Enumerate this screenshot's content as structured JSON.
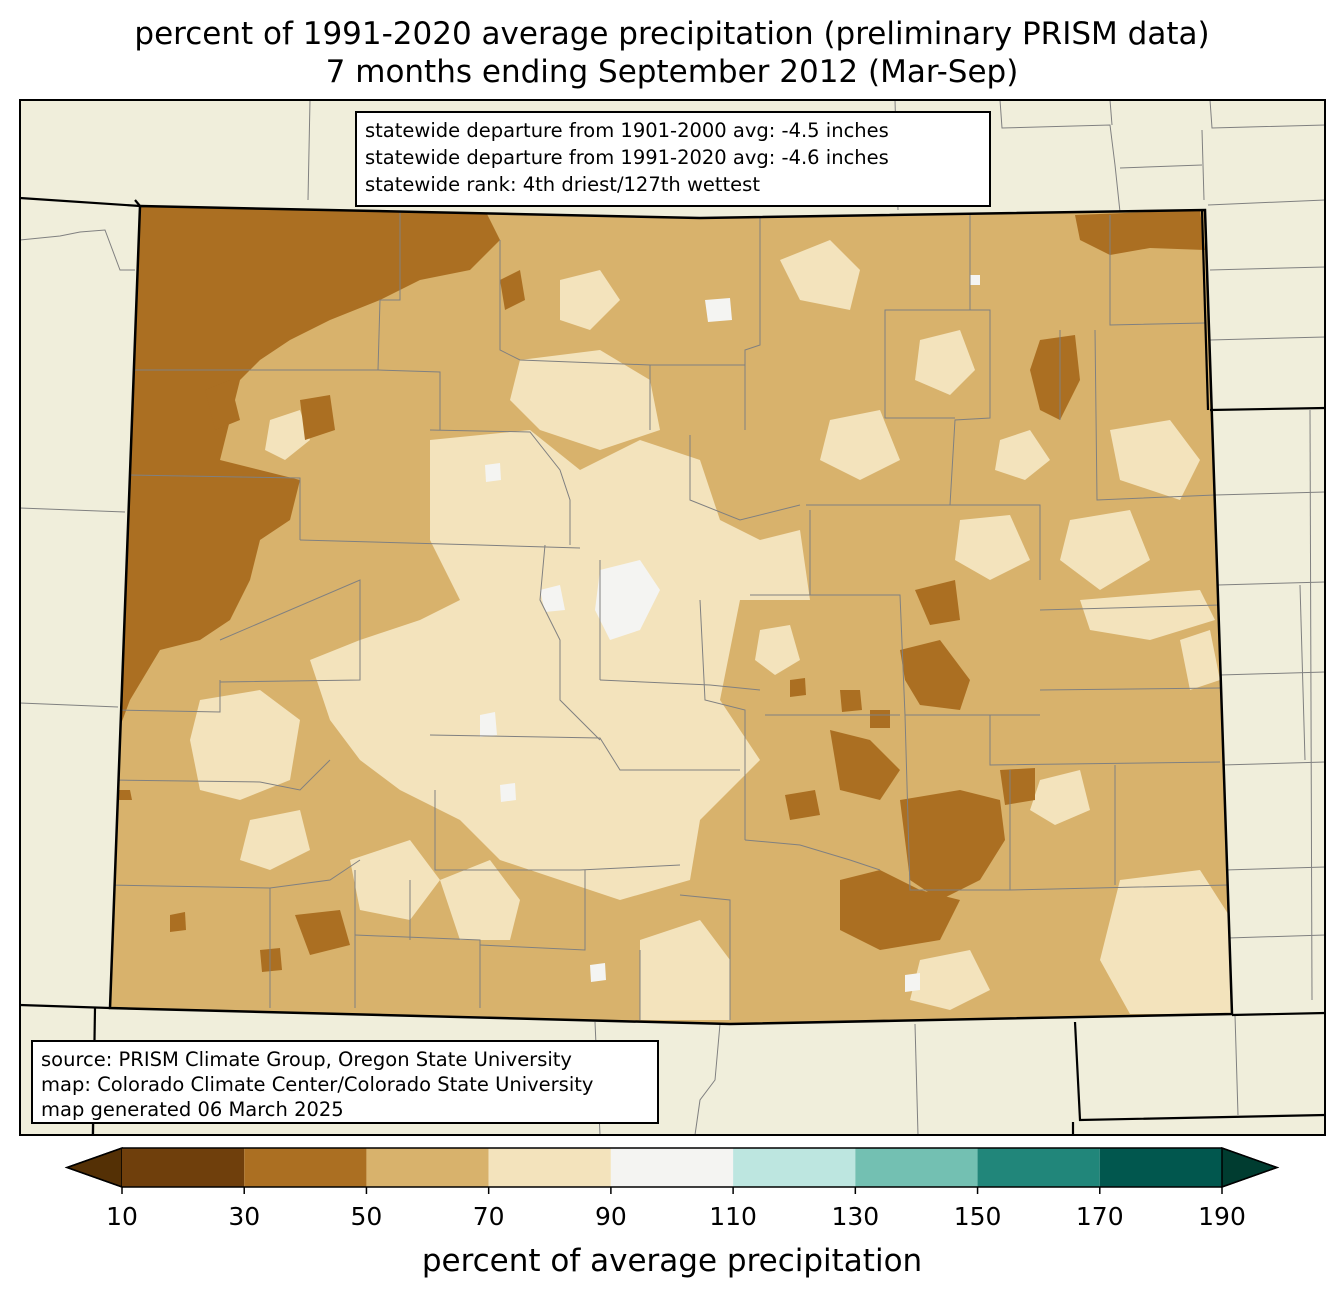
{
  "title": {
    "line1": "percent of 1991-2020 average precipitation (preliminary PRISM data)",
    "line2": "7 months ending September 2012 (Mar-Sep)"
  },
  "stats": {
    "line1": "statewide departure from 1901-2000 avg: -4.5 inches",
    "line2": "statewide departure from 1991-2020 avg: -4.6 inches",
    "line3": "statewide rank: 4th driest/127th wettest"
  },
  "source": {
    "line1": "source: PRISM Climate Group, Oregon State University",
    "line2": "map: Colorado Climate Center/Colorado State University",
    "line3": "map generated 06 March 2025"
  },
  "colorbar": {
    "label": "percent of average precipitation",
    "ticks": [
      "10",
      "30",
      "50",
      "70",
      "90",
      "110",
      "130",
      "150",
      "170",
      "190"
    ],
    "bins": [
      {
        "range": "<10",
        "color": "#543005"
      },
      {
        "range": "10-30",
        "color": "#6f3f0c"
      },
      {
        "range": "30-50",
        "color": "#ab6f22"
      },
      {
        "range": "50-70",
        "color": "#d8b26c"
      },
      {
        "range": "70-90",
        "color": "#f3e3bc"
      },
      {
        "range": "90-110",
        "color": "#f4f4f2"
      },
      {
        "range": "110-130",
        "color": "#bde6e0"
      },
      {
        "range": "130-150",
        "color": "#73c0b2"
      },
      {
        "range": "150-170",
        "color": "#21867a"
      },
      {
        "range": "170-190",
        "color": "#01574e"
      },
      {
        "range": ">190",
        "color": "#003c30"
      }
    ]
  },
  "colors": {
    "land_outside": "#f0eedb",
    "county_lines": "#808080",
    "border": "#000000"
  }
}
